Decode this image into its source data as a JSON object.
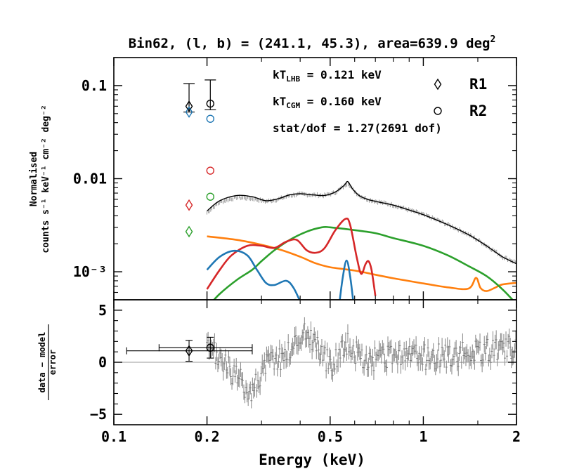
{
  "chart_data": {
    "type": "line",
    "title": "Bin62, (l, b) = (241.1, 45.3), area=639.9 deg",
    "title_superscript": "2",
    "xlabel": "Energy (keV)",
    "x_scale": "log",
    "xlim": [
      0.1,
      2
    ],
    "x_ticks": [
      {
        "value": 0.1,
        "label": "0.1"
      },
      {
        "value": 0.2,
        "label": "0.2"
      },
      {
        "value": 0.5,
        "label": "0.5"
      },
      {
        "value": 1,
        "label": "1"
      },
      {
        "value": 2,
        "label": "2"
      }
    ],
    "top_panel": {
      "ylabel_line1": "Normalised",
      "ylabel_line2": "counts s⁻¹ keV⁻¹ cm⁻² deg⁻²",
      "y_scale": "log",
      "ylim": [
        0.0005,
        0.2
      ],
      "y_ticks": [
        {
          "value": 0.1,
          "label": "0.1"
        },
        {
          "value": 0.01,
          "label": "0.01"
        },
        {
          "value": 0.001,
          "label": "10⁻³"
        }
      ],
      "annotations": [
        {
          "main": "kT",
          "sub": "LHB",
          "rest": " = 0.121  keV"
        },
        {
          "main": "kT",
          "sub": "CGM",
          "rest": " = 0.160  keV"
        },
        {
          "main": "stat/dof",
          "sub": "",
          "rest": " = 1.27(2691 dof)"
        }
      ],
      "legend": {
        "placement": "top-right",
        "entries": [
          {
            "label": "R1",
            "marker": "diamond"
          },
          {
            "label": "R2",
            "marker": "circle"
          }
        ]
      },
      "rosat_points": [
        {
          "name": "R1 data",
          "marker": "diamond",
          "color": "#000000",
          "x": 0.175,
          "y": 0.06,
          "yerr_lo": 0.052,
          "yerr_hi": 0.105
        },
        {
          "name": "R2 data",
          "marker": "circle",
          "color": "#000000",
          "x": 0.205,
          "y": 0.064,
          "yerr_lo": 0.055,
          "yerr_hi": 0.115
        },
        {
          "name": "R1 model blue",
          "marker": "diamond",
          "color": "#1f77b4",
          "x": 0.175,
          "y": 0.052
        },
        {
          "name": "R1 model red",
          "marker": "diamond",
          "color": "#d62728",
          "x": 0.175,
          "y": 0.0052
        },
        {
          "name": "R1 model green",
          "marker": "diamond",
          "color": "#2ca02c",
          "x": 0.175,
          "y": 0.0027
        },
        {
          "name": "R2 model blue",
          "marker": "circle",
          "color": "#1f77b4",
          "x": 0.205,
          "y": 0.044
        },
        {
          "name": "R2 model red",
          "marker": "circle",
          "color": "#d62728",
          "x": 0.205,
          "y": 0.0122
        },
        {
          "name": "R2 model green",
          "marker": "circle",
          "color": "#2ca02c",
          "x": 0.205,
          "y": 0.0064
        }
      ],
      "series": [
        {
          "name": "total model",
          "color": "#000000",
          "points": [
            [
              0.2,
              0.0045
            ],
            [
              0.22,
              0.0058
            ],
            [
              0.25,
              0.0066
            ],
            [
              0.28,
              0.0064
            ],
            [
              0.31,
              0.0058
            ],
            [
              0.34,
              0.0061
            ],
            [
              0.37,
              0.0067
            ],
            [
              0.4,
              0.0069
            ],
            [
              0.44,
              0.0067
            ],
            [
              0.48,
              0.0066
            ],
            [
              0.52,
              0.0072
            ],
            [
              0.555,
              0.0085
            ],
            [
              0.57,
              0.0093
            ],
            [
              0.59,
              0.0078
            ],
            [
              0.62,
              0.0066
            ],
            [
              0.66,
              0.006
            ],
            [
              0.72,
              0.0056
            ],
            [
              0.8,
              0.0052
            ],
            [
              0.9,
              0.0046
            ],
            [
              1.0,
              0.0041
            ],
            [
              1.2,
              0.0032
            ],
            [
              1.4,
              0.0025
            ],
            [
              1.6,
              0.0019
            ],
            [
              1.8,
              0.00145
            ],
            [
              2.0,
              0.00122
            ]
          ]
        },
        {
          "name": "data",
          "color": "#808080",
          "points": [
            [
              0.2,
              0.0043
            ],
            [
              0.22,
              0.0056
            ],
            [
              0.25,
              0.0063
            ],
            [
              0.28,
              0.0061
            ],
            [
              0.31,
              0.0057
            ],
            [
              0.34,
              0.006
            ],
            [
              0.37,
              0.0066
            ],
            [
              0.4,
              0.0068
            ],
            [
              0.44,
              0.0067
            ],
            [
              0.48,
              0.0066
            ],
            [
              0.52,
              0.0071
            ],
            [
              0.555,
              0.0083
            ],
            [
              0.57,
              0.009
            ],
            [
              0.59,
              0.0077
            ],
            [
              0.62,
              0.0066
            ],
            [
              0.66,
              0.006
            ],
            [
              0.72,
              0.0056
            ],
            [
              0.8,
              0.0052
            ],
            [
              0.9,
              0.0046
            ],
            [
              1.0,
              0.0041
            ],
            [
              1.2,
              0.0032
            ],
            [
              1.4,
              0.0025
            ],
            [
              1.6,
              0.0019
            ],
            [
              1.8,
              0.00145
            ],
            [
              2.0,
              0.00125
            ]
          ]
        },
        {
          "name": "orange component",
          "color": "#ff7f0e",
          "points": [
            [
              0.2,
              0.0024
            ],
            [
              0.25,
              0.0022
            ],
            [
              0.3,
              0.00195
            ],
            [
              0.35,
              0.0017
            ],
            [
              0.4,
              0.00145
            ],
            [
              0.45,
              0.00123
            ],
            [
              0.5,
              0.00112
            ],
            [
              0.6,
              0.00103
            ],
            [
              0.7,
              0.00093
            ],
            [
              0.8,
              0.00085
            ],
            [
              1.0,
              0.00075
            ],
            [
              1.2,
              0.00068
            ],
            [
              1.4,
              0.00066
            ],
            [
              1.48,
              0.00086
            ],
            [
              1.53,
              0.00067
            ],
            [
              1.6,
              0.00062
            ],
            [
              1.7,
              0.00067
            ],
            [
              1.8,
              0.00073
            ],
            [
              2.0,
              0.00076
            ]
          ]
        },
        {
          "name": "green component",
          "color": "#2ca02c",
          "points": [
            [
              0.205,
              0.00045
            ],
            [
              0.22,
              0.00058
            ],
            [
              0.25,
              0.00082
            ],
            [
              0.28,
              0.00105
            ],
            [
              0.3,
              0.0013
            ],
            [
              0.33,
              0.0017
            ],
            [
              0.37,
              0.0022
            ],
            [
              0.42,
              0.0027
            ],
            [
              0.47,
              0.003
            ],
            [
              0.5,
              0.003
            ],
            [
              0.6,
              0.0028
            ],
            [
              0.7,
              0.0026
            ],
            [
              0.8,
              0.0023
            ],
            [
              1.0,
              0.0019
            ],
            [
              1.2,
              0.0015
            ],
            [
              1.4,
              0.00115
            ],
            [
              1.6,
              0.0009
            ],
            [
              1.8,
              0.00065
            ],
            [
              2.0,
              0.00045
            ]
          ]
        },
        {
          "name": "red component",
          "color": "#d62728",
          "points": [
            [
              0.2,
              0.00065
            ],
            [
              0.22,
              0.00105
            ],
            [
              0.24,
              0.0015
            ],
            [
              0.27,
              0.0019
            ],
            [
              0.3,
              0.0019
            ],
            [
              0.33,
              0.0018
            ],
            [
              0.36,
              0.0021
            ],
            [
              0.39,
              0.0022
            ],
            [
              0.42,
              0.0017
            ],
            [
              0.45,
              0.0016
            ],
            [
              0.48,
              0.0018
            ],
            [
              0.52,
              0.0028
            ],
            [
              0.56,
              0.0037
            ],
            [
              0.58,
              0.0032
            ],
            [
              0.61,
              0.0014
            ],
            [
              0.63,
              0.00095
            ],
            [
              0.65,
              0.0012
            ],
            [
              0.665,
              0.0013
            ],
            [
              0.68,
              0.00105
            ],
            [
              0.7,
              0.00055
            ]
          ]
        },
        {
          "name": "blue component",
          "color": "#1f77b4",
          "points": [
            [
              0.2,
              0.00105
            ],
            [
              0.22,
              0.00145
            ],
            [
              0.245,
              0.00168
            ],
            [
              0.27,
              0.0015
            ],
            [
              0.29,
              0.00105
            ],
            [
              0.31,
              0.00076
            ],
            [
              0.33,
              0.00072
            ],
            [
              0.36,
              0.0008
            ],
            [
              0.38,
              0.00068
            ],
            [
              0.4,
              0.00048
            ]
          ],
          "points_b": [
            [
              0.535,
              0.00045
            ],
            [
              0.55,
              0.0009
            ],
            [
              0.565,
              0.00132
            ],
            [
              0.58,
              0.0009
            ],
            [
              0.595,
              0.00045
            ]
          ]
        }
      ]
    },
    "bottom_panel": {
      "ylabel_num": "data − model",
      "ylabel_den": "error",
      "ylim": [
        -6,
        6
      ],
      "y_ticks": [
        {
          "value": 5,
          "label": "5"
        },
        {
          "value": 0,
          "label": "0"
        },
        {
          "value": -5,
          "label": "−5"
        }
      ],
      "rosat_residuals": [
        {
          "name": "R1 residual",
          "marker": "diamond",
          "x": 0.175,
          "y": 1.1,
          "xerr": [
            0.11,
            0.28
          ],
          "yerr": 1.0
        },
        {
          "name": "R2 residual",
          "marker": "circle",
          "x": 0.205,
          "y": 1.4,
          "xerr": [
            0.14,
            0.28
          ],
          "yerr": 1.0
        }
      ],
      "residual_trend": [
        [
          0.2,
          1.0
        ],
        [
          0.22,
          0.5
        ],
        [
          0.24,
          -1.0
        ],
        [
          0.26,
          -2.0
        ],
        [
          0.28,
          -2.8
        ],
        [
          0.3,
          -1.0
        ],
        [
          0.32,
          0.2
        ],
        [
          0.35,
          0.5
        ],
        [
          0.38,
          1.5
        ],
        [
          0.41,
          3.0
        ],
        [
          0.44,
          2.2
        ],
        [
          0.47,
          1.0
        ],
        [
          0.5,
          -0.5
        ],
        [
          0.53,
          0.8
        ],
        [
          0.56,
          2.0
        ],
        [
          0.6,
          1.0
        ],
        [
          0.65,
          0.0
        ],
        [
          0.7,
          0.2
        ],
        [
          0.8,
          0.5
        ],
        [
          0.9,
          0.8
        ],
        [
          1.0,
          0.5
        ],
        [
          1.2,
          0.6
        ],
        [
          1.4,
          0.8
        ],
        [
          1.6,
          1.0
        ],
        [
          1.8,
          1.2
        ],
        [
          2.0,
          1.5
        ]
      ],
      "residual_color": "#777777"
    }
  }
}
